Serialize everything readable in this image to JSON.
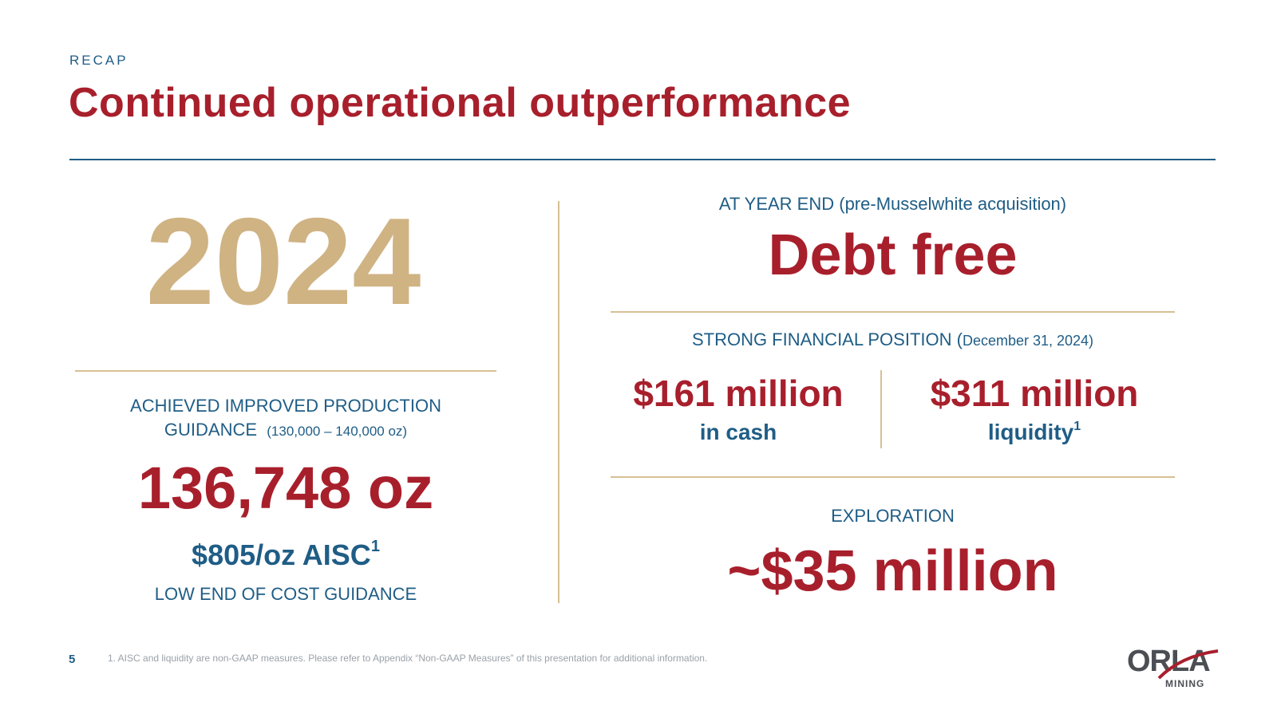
{
  "header": {
    "kicker": "RECAP",
    "title": "Continued operational outperformance"
  },
  "left": {
    "year": "2024",
    "production_heading_line1": "ACHIEVED IMPROVED PRODUCTION",
    "production_heading_line2": "GUIDANCE",
    "production_guidance_range": "(130,000 – 140,000 oz)",
    "production_value": "136,748 oz",
    "aisc_value": "$805/oz AISC",
    "aisc_footnote_marker": "1",
    "aisc_caption": "LOW END OF COST GUIDANCE"
  },
  "right": {
    "year_end_label": "AT YEAR END (pre-Musselwhite acquisition)",
    "debt_status": "Debt free",
    "financial_heading": "STRONG FINANCIAL POSITION (",
    "financial_date": "December 31, 2024)",
    "cash_value": "$161 million",
    "cash_caption": "in cash",
    "liquidity_value": "$311 million",
    "liquidity_caption": "liquidity",
    "liquidity_footnote_marker": "1",
    "exploration_heading": "EXPLORATION",
    "exploration_value": "~$35 million"
  },
  "footer": {
    "page_number": "5",
    "footnote": "1. AISC and liquidity are non-GAAP measures. Please refer to Appendix “Non-GAAP Measures” of this presentation for additional information.",
    "logo_text": "ORLA",
    "logo_subtext": "MINING"
  },
  "colors": {
    "brand_red": "#a81f2c",
    "brand_blue": "#1f5d86",
    "gold": "#cfb383",
    "divider_gold": "#d8bf94"
  }
}
